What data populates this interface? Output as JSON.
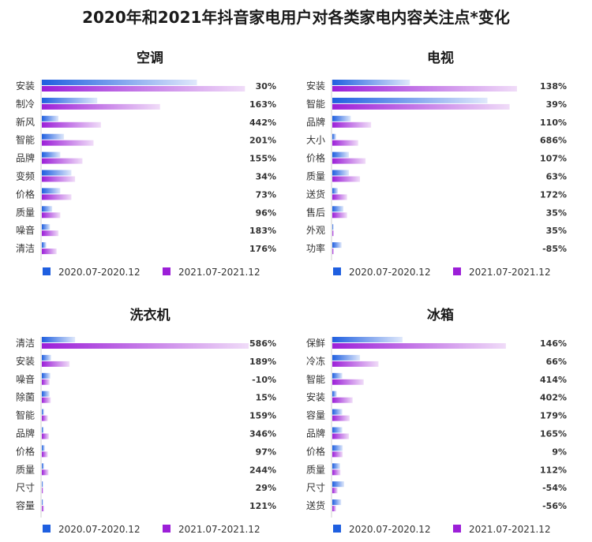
{
  "title": "2020年和2021年抖音家电用户对各类家电内容关注点*变化",
  "legend": [
    "2020.07-2020.12",
    "2021.07-2021.12"
  ],
  "colors": {
    "s1_start": "#1f5fe0",
    "s1_end": "#dfe8fb",
    "s2_start": "#9c1fd8",
    "s2_end": "#f0dcf8",
    "axis": "#cfcfcf",
    "legend_s1": "#1f5fe0",
    "legend_s2": "#9c1fd8"
  },
  "chart_data": [
    {
      "type": "bar",
      "title": "空调",
      "categories": [
        "安装",
        "制冷",
        "新风",
        "智能",
        "品牌",
        "变频",
        "价格",
        "质量",
        "噪音",
        "清洁"
      ],
      "series": [
        {
          "name": "2020.07-2020.12",
          "values": [
            42,
            15,
            4.5,
            6,
            5,
            8,
            5,
            2.8,
            2.2,
            1.2
          ]
        },
        {
          "name": "2021.07-2021.12",
          "values": [
            55,
            32,
            16,
            14,
            11,
            9,
            8,
            5,
            4.5,
            4
          ]
        }
      ],
      "changes": [
        "30%",
        "163%",
        "442%",
        "201%",
        "155%",
        "34%",
        "73%",
        "96%",
        "183%",
        "176%"
      ]
    },
    {
      "type": "bar",
      "title": "电视",
      "categories": [
        "安装",
        "智能",
        "品牌",
        "大小",
        "价格",
        "质量",
        "送货",
        "售后",
        "外观",
        "功率"
      ],
      "series": [
        {
          "name": "2020.07-2020.12",
          "values": [
            21,
            42,
            5,
            1,
            4.5,
            4.5,
            1.5,
            3,
            0.3,
            2.5
          ]
        },
        {
          "name": "2021.07-2021.12",
          "values": [
            50,
            48,
            10.5,
            7,
            9,
            7.5,
            4,
            4,
            0.4,
            0.4
          ]
        }
      ],
      "changes": [
        "138%",
        "39%",
        "110%",
        "686%",
        "107%",
        "63%",
        "172%",
        "35%",
        "35%",
        "-85%"
      ]
    },
    {
      "type": "bar",
      "title": "洗衣机",
      "categories": [
        "清洁",
        "安装",
        "噪音",
        "除菌",
        "智能",
        "品牌",
        "价格",
        "质量",
        "尺寸",
        "容量"
      ],
      "series": [
        {
          "name": "2020.07-2020.12",
          "values": [
            9,
            2.5,
            2.3,
            2.1,
            0.6,
            0.5,
            0.8,
            0.6,
            0.25,
            0.3
          ]
        },
        {
          "name": "2021.07-2021.12",
          "values": [
            56,
            7.5,
            2.1,
            2.4,
            1.6,
            1.9,
            1.6,
            1.8,
            0.35,
            0.6
          ]
        }
      ],
      "changes": [
        "586%",
        "189%",
        "-10%",
        "15%",
        "159%",
        "346%",
        "97%",
        "244%",
        "29%",
        "121%"
      ]
    },
    {
      "type": "bar",
      "title": "冰箱",
      "categories": [
        "保鲜",
        "冷冻",
        "智能",
        "安装",
        "容量",
        "品牌",
        "价格",
        "质量",
        "尺寸",
        "送货"
      ],
      "series": [
        {
          "name": "2020.07-2020.12",
          "values": [
            19,
            7.5,
            2.7,
            1.2,
            2.7,
            2.7,
            2.8,
            2.1,
            3.2,
            2.4
          ]
        },
        {
          "name": "2021.07-2021.12",
          "values": [
            47,
            12.5,
            8.5,
            5.5,
            4.7,
            4.5,
            2.8,
            2.2,
            1.4,
            1.0
          ]
        }
      ],
      "changes": [
        "146%",
        "66%",
        "414%",
        "402%",
        "179%",
        "165%",
        "9%",
        "112%",
        "-54%",
        "-56%"
      ]
    }
  ]
}
